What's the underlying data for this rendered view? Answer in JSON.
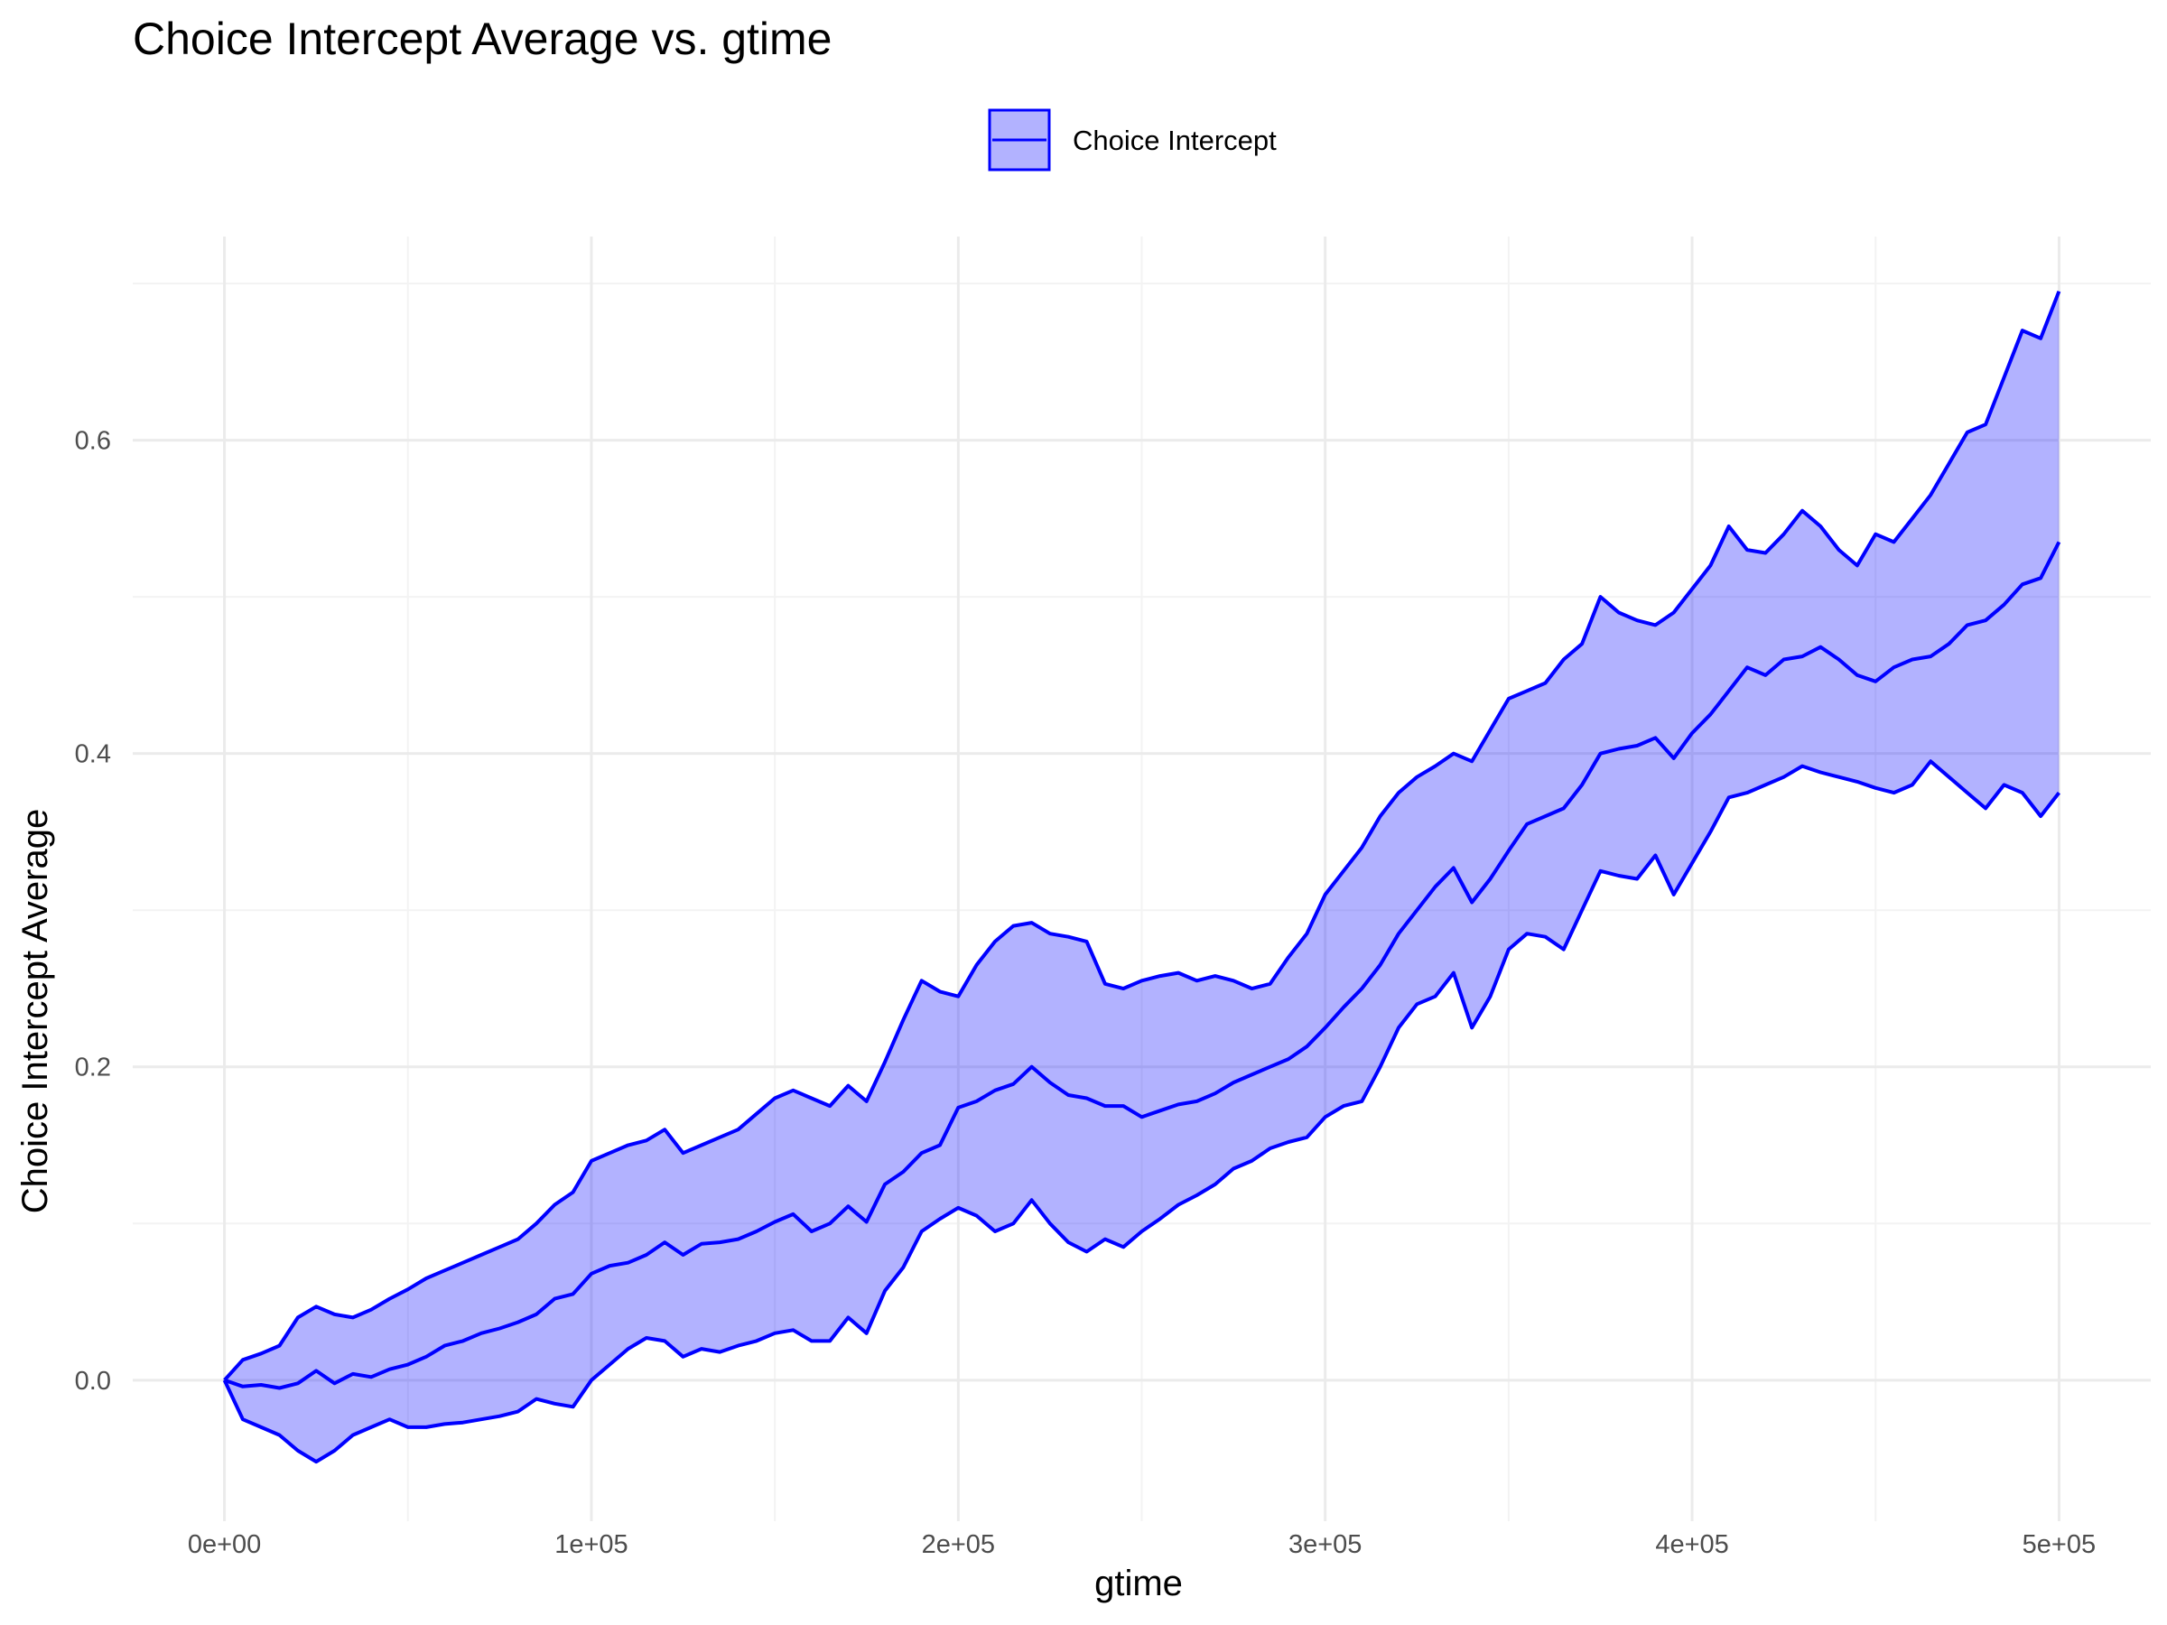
{
  "chart_data": {
    "type": "line",
    "title": "Choice Intercept Average vs. gtime",
    "xlabel": "gtime",
    "ylabel": "Choice Intercept Average",
    "xlim": [
      -25000,
      525000
    ],
    "ylim": [
      -0.09,
      0.73
    ],
    "x_ticks": [
      0,
      100000,
      200000,
      300000,
      400000,
      500000
    ],
    "x_tick_labels": [
      "0e+00",
      "1e+05",
      "2e+05",
      "3e+05",
      "4e+05",
      "5e+05"
    ],
    "y_ticks": [
      0.0,
      0.2,
      0.4,
      0.6
    ],
    "y_tick_labels": [
      "0.0",
      "0.2",
      "0.4",
      "0.6"
    ],
    "grid": true,
    "legend": {
      "position": "top",
      "entries": [
        "Choice Intercept"
      ]
    },
    "colors": {
      "line": "#0000FF",
      "ribbon": "#0000FF",
      "ribbon_opacity": 0.3
    },
    "series": [
      {
        "name": "Choice Intercept",
        "x": [
          0,
          5000,
          10000,
          15000,
          20000,
          25000,
          30000,
          35000,
          40000,
          45000,
          50000,
          55000,
          60000,
          65000,
          70000,
          75000,
          80000,
          85000,
          90000,
          95000,
          100000,
          105000,
          110000,
          115000,
          120000,
          125000,
          130000,
          135000,
          140000,
          145000,
          150000,
          155000,
          160000,
          165000,
          170000,
          175000,
          180000,
          185000,
          190000,
          195000,
          200000,
          205000,
          210000,
          215000,
          220000,
          225000,
          230000,
          235000,
          240000,
          245000,
          250000,
          255000,
          260000,
          265000,
          270000,
          275000,
          280000,
          285000,
          290000,
          295000,
          300000,
          305000,
          310000,
          315000,
          320000,
          325000,
          330000,
          335000,
          340000,
          345000,
          350000,
          355000,
          360000,
          365000,
          370000,
          375000,
          380000,
          385000,
          390000,
          395000,
          400000,
          405000,
          410000,
          415000,
          420000,
          425000,
          430000,
          435000,
          440000,
          445000,
          450000,
          455000,
          460000,
          465000,
          470000,
          475000,
          480000,
          485000,
          490000,
          495000,
          500000
        ],
        "mean": [
          0.0,
          -0.004,
          -0.003,
          -0.005,
          -0.002,
          0.006,
          -0.002,
          0.004,
          0.002,
          0.007,
          0.01,
          0.015,
          0.022,
          0.025,
          0.03,
          0.033,
          0.037,
          0.042,
          0.052,
          0.055,
          0.068,
          0.073,
          0.075,
          0.08,
          0.088,
          0.08,
          0.087,
          0.088,
          0.09,
          0.095,
          0.101,
          0.106,
          0.095,
          0.1,
          0.111,
          0.101,
          0.125,
          0.133,
          0.145,
          0.15,
          0.174,
          0.178,
          0.185,
          0.189,
          0.2,
          0.19,
          0.182,
          0.18,
          0.175,
          0.175,
          0.168,
          0.172,
          0.176,
          0.178,
          0.183,
          0.19,
          0.195,
          0.2,
          0.205,
          0.213,
          0.225,
          0.238,
          0.25,
          0.265,
          0.285,
          0.3,
          0.315,
          0.327,
          0.305,
          0.32,
          0.338,
          0.355,
          0.36,
          0.365,
          0.38,
          0.4,
          0.403,
          0.405,
          0.41,
          0.397,
          0.413,
          0.425,
          0.44,
          0.455,
          0.45,
          0.46,
          0.462,
          0.468,
          0.46,
          0.45,
          0.446,
          0.455,
          0.46,
          0.462,
          0.47,
          0.482,
          0.485,
          0.495,
          0.508,
          0.512,
          0.535
        ],
        "upper": [
          0.0,
          0.013,
          0.017,
          0.022,
          0.04,
          0.047,
          0.042,
          0.04,
          0.045,
          0.052,
          0.058,
          0.065,
          0.07,
          0.075,
          0.08,
          0.085,
          0.09,
          0.1,
          0.112,
          0.12,
          0.14,
          0.145,
          0.15,
          0.153,
          0.16,
          0.145,
          0.15,
          0.155,
          0.16,
          0.17,
          0.18,
          0.185,
          0.18,
          0.175,
          0.188,
          0.178,
          0.203,
          0.23,
          0.255,
          0.248,
          0.245,
          0.265,
          0.28,
          0.29,
          0.292,
          0.285,
          0.283,
          0.28,
          0.253,
          0.25,
          0.255,
          0.258,
          0.26,
          0.255,
          0.258,
          0.255,
          0.25,
          0.253,
          0.27,
          0.285,
          0.31,
          0.325,
          0.34,
          0.36,
          0.375,
          0.385,
          0.392,
          0.4,
          0.395,
          0.415,
          0.435,
          0.44,
          0.445,
          0.46,
          0.47,
          0.5,
          0.49,
          0.485,
          0.482,
          0.49,
          0.505,
          0.52,
          0.545,
          0.53,
          0.528,
          0.54,
          0.555,
          0.545,
          0.53,
          0.52,
          0.54,
          0.535,
          0.55,
          0.565,
          0.585,
          0.605,
          0.61,
          0.64,
          0.67,
          0.665,
          0.695
        ],
        "lower": [
          0.0,
          -0.025,
          -0.03,
          -0.035,
          -0.045,
          -0.052,
          -0.045,
          -0.035,
          -0.03,
          -0.025,
          -0.03,
          -0.03,
          -0.028,
          -0.027,
          -0.025,
          -0.023,
          -0.02,
          -0.012,
          -0.015,
          -0.017,
          0.0,
          0.01,
          0.02,
          0.027,
          0.025,
          0.015,
          0.02,
          0.018,
          0.022,
          0.025,
          0.03,
          0.032,
          0.025,
          0.025,
          0.04,
          0.03,
          0.057,
          0.072,
          0.095,
          0.103,
          0.11,
          0.105,
          0.095,
          0.1,
          0.115,
          0.1,
          0.088,
          0.082,
          0.09,
          0.085,
          0.095,
          0.103,
          0.112,
          0.118,
          0.125,
          0.135,
          0.14,
          0.148,
          0.152,
          0.155,
          0.168,
          0.175,
          0.178,
          0.2,
          0.225,
          0.24,
          0.245,
          0.26,
          0.225,
          0.245,
          0.275,
          0.285,
          0.283,
          0.275,
          0.3,
          0.325,
          0.322,
          0.32,
          0.335,
          0.31,
          0.33,
          0.35,
          0.372,
          0.375,
          0.38,
          0.385,
          0.392,
          0.388,
          0.385,
          0.382,
          0.378,
          0.375,
          0.38,
          0.395,
          0.385,
          0.375,
          0.365,
          0.38,
          0.375,
          0.36,
          0.375
        ]
      }
    ]
  }
}
